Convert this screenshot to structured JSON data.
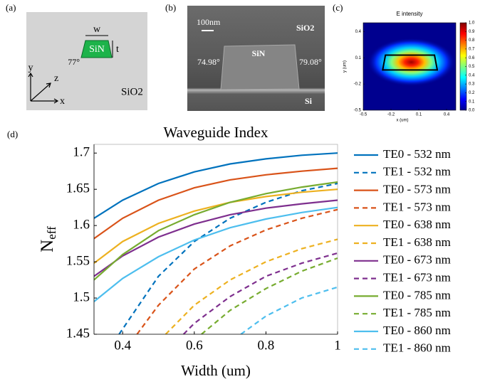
{
  "panels": {
    "a": {
      "label": "(a)",
      "core": "SiN",
      "width": "w",
      "thickness": "t",
      "angle": "77°",
      "cladding": "SiO2",
      "axis_y": "y",
      "axis_z": "z",
      "axis_x": "x"
    },
    "b": {
      "label": "(b)",
      "scale": "100nm",
      "cladding": "SiO2",
      "core": "SiN",
      "left_angle": "74.98°",
      "right_angle": "79.08°",
      "substrate": "Si"
    },
    "c": {
      "label": "(c)"
    },
    "d": {
      "label": "(d)"
    }
  },
  "chart_data": [
    {
      "type": "heatmap",
      "title": "E intensity",
      "xlabel": "x (um)",
      "ylabel": "y (um)",
      "colormap": "jet",
      "xlim": [
        -0.5,
        0.5
      ],
      "ylim": [
        -0.5,
        0.5
      ],
      "xticks": [
        -0.5,
        -0.2,
        0.1,
        0.4
      ],
      "yticks": [
        -0.5,
        -0.2,
        0.1,
        0.4
      ],
      "clim": [
        0,
        1
      ],
      "cticks": [
        {
          "value": 0,
          "label": "0.0"
        },
        0.1,
        0.2,
        0.3,
        0.4,
        0.5,
        0.6,
        0.7,
        0.8,
        0.9,
        {
          "value": 1,
          "label": "1.0"
        }
      ]
    },
    {
      "type": "line",
      "title": "Waveguide Index",
      "xlabel": "Width (um)",
      "ylabel": "N",
      "ylabel_sub": "eff",
      "xlim": [
        0.32,
        1
      ],
      "ylim": [
        1.45,
        1.712
      ],
      "xticks": [
        0.4,
        0.6,
        0.8,
        1
      ],
      "yticks": [
        1.45,
        1.5,
        1.55,
        1.6,
        1.65,
        1.7
      ],
      "series": [
        {
          "name": "TE0 - 532 nm",
          "color": "#0072BD",
          "linestyle": "solid",
          "x": [
            0.32,
            0.4,
            0.5,
            0.6,
            0.7,
            0.8,
            0.9,
            1.0
          ],
          "values": [
            1.61,
            1.635,
            1.658,
            1.674,
            1.685,
            1.692,
            1.697,
            1.7
          ]
        },
        {
          "name": "TE1 - 532 nm",
          "color": "#0072BD",
          "linestyle": "dashed",
          "x": [
            0.39,
            0.5,
            0.6,
            0.7,
            0.8,
            0.9,
            1.0
          ],
          "values": [
            1.45,
            1.53,
            1.578,
            1.61,
            1.632,
            1.648,
            1.658
          ]
        },
        {
          "name": "TE0 - 573 nm",
          "color": "#D95319",
          "linestyle": "solid",
          "x": [
            0.32,
            0.4,
            0.5,
            0.6,
            0.7,
            0.8,
            0.9,
            1.0
          ],
          "values": [
            1.582,
            1.61,
            1.635,
            1.652,
            1.663,
            1.67,
            1.675,
            1.679
          ]
        },
        {
          "name": "TE1 - 573 nm",
          "color": "#D95319",
          "linestyle": "dashed",
          "x": [
            0.44,
            0.5,
            0.6,
            0.7,
            0.8,
            0.9,
            1.0
          ],
          "values": [
            1.45,
            1.49,
            1.54,
            1.572,
            1.594,
            1.61,
            1.622
          ]
        },
        {
          "name": "TE0 - 638 nm",
          "color": "#EDB120",
          "linestyle": "solid",
          "x": [
            0.32,
            0.4,
            0.5,
            0.6,
            0.7,
            0.8,
            0.9,
            1.0
          ],
          "values": [
            1.548,
            1.578,
            1.603,
            1.62,
            1.632,
            1.64,
            1.646,
            1.65
          ]
        },
        {
          "name": "TE1 - 638 nm",
          "color": "#EDB120",
          "linestyle": "dashed",
          "x": [
            0.52,
            0.6,
            0.7,
            0.8,
            0.9,
            1.0
          ],
          "values": [
            1.45,
            1.49,
            1.525,
            1.55,
            1.568,
            1.581
          ]
        },
        {
          "name": "TE0 - 673 nm",
          "color": "#7E2F8E",
          "linestyle": "solid",
          "x": [
            0.32,
            0.4,
            0.5,
            0.6,
            0.7,
            0.8,
            0.9,
            1.0
          ],
          "values": [
            1.53,
            1.558,
            1.584,
            1.602,
            1.615,
            1.624,
            1.63,
            1.635
          ]
        },
        {
          "name": "TE1 - 673 nm",
          "color": "#7E2F8E",
          "linestyle": "dashed",
          "x": [
            0.57,
            0.6,
            0.7,
            0.8,
            0.9,
            1.0
          ],
          "values": [
            1.45,
            1.465,
            1.502,
            1.53,
            1.548,
            1.562
          ]
        },
        {
          "name": "TE0 - 785 nm",
          "color": "#77AC30",
          "linestyle": "solid",
          "x": [
            0.32,
            0.4,
            0.5,
            0.6,
            0.7,
            0.8,
            0.9,
            1.0
          ],
          "values": [
            1.525,
            1.56,
            1.593,
            1.615,
            1.632,
            1.644,
            1.653,
            1.66
          ]
        },
        {
          "name": "TE1 - 785 nm",
          "color": "#77AC30",
          "linestyle": "dashed",
          "x": [
            0.62,
            0.7,
            0.8,
            0.9,
            1.0
          ],
          "values": [
            1.45,
            1.483,
            1.513,
            1.537,
            1.555
          ]
        },
        {
          "name": "TE0 - 860 nm",
          "color": "#4DBEEE",
          "linestyle": "solid",
          "x": [
            0.32,
            0.4,
            0.5,
            0.6,
            0.7,
            0.8,
            0.9,
            1.0
          ],
          "values": [
            1.495,
            1.527,
            1.557,
            1.58,
            1.597,
            1.609,
            1.618,
            1.625
          ]
        },
        {
          "name": "TE1 - 860 nm",
          "color": "#4DBEEE",
          "linestyle": "dashed",
          "x": [
            0.73,
            0.8,
            0.9,
            1.0
          ],
          "values": [
            1.45,
            1.475,
            1.5,
            1.515
          ]
        }
      ]
    }
  ]
}
